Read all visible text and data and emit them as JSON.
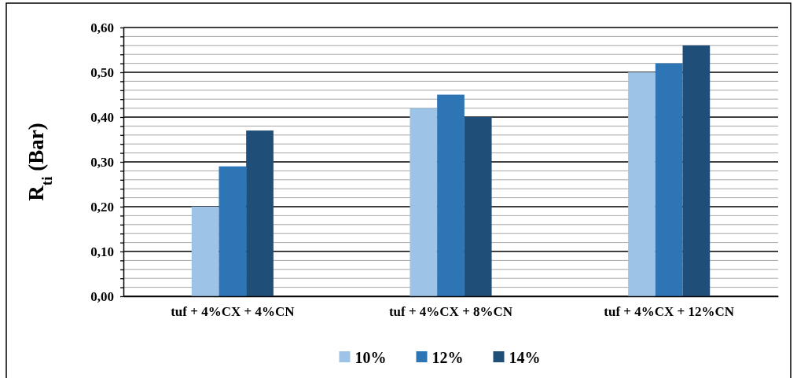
{
  "chart_data": {
    "type": "bar",
    "ylabel": "R$_{ti}$ (Bar)",
    "categories": [
      "tuf + 4%CX + 4%CN",
      "tuf + 4%CX + 8%CN",
      "tuf + 4%CX + 12%CN"
    ],
    "series": [
      {
        "name": "10%",
        "color": "#9dc3e6",
        "values": [
          0.2,
          0.42,
          0.5
        ]
      },
      {
        "name": "12%",
        "color": "#2e75b6",
        "values": [
          0.29,
          0.45,
          0.52
        ]
      },
      {
        "name": "14%",
        "color": "#1f4e79",
        "values": [
          0.37,
          0.4,
          0.56
        ]
      }
    ],
    "ylim": [
      0,
      0.6
    ],
    "yticks": [
      {
        "value": 0,
        "label": "0,00"
      },
      {
        "value": 0.02,
        "label": null
      },
      {
        "value": 0.04,
        "label": null
      },
      {
        "value": 0.06,
        "label": null
      },
      {
        "value": 0.08,
        "label": null
      },
      {
        "value": 0.1,
        "label": "0,10"
      },
      {
        "value": 0.12,
        "label": null
      },
      {
        "value": 0.14,
        "label": null
      },
      {
        "value": 0.16,
        "label": null
      },
      {
        "value": 0.18,
        "label": null
      },
      {
        "value": 0.2,
        "label": "0,20"
      },
      {
        "value": 0.22,
        "label": null
      },
      {
        "value": 0.24,
        "label": null
      },
      {
        "value": 0.26,
        "label": null
      },
      {
        "value": 0.28,
        "label": null
      },
      {
        "value": 0.3,
        "label": "0,30"
      },
      {
        "value": 0.32,
        "label": null
      },
      {
        "value": 0.34,
        "label": null
      },
      {
        "value": 0.36,
        "label": null
      },
      {
        "value": 0.38,
        "label": null
      },
      {
        "value": 0.4,
        "label": "0,40"
      },
      {
        "value": 0.42,
        "label": null
      },
      {
        "value": 0.44,
        "label": null
      },
      {
        "value": 0.46,
        "label": null
      },
      {
        "value": 0.48,
        "label": null
      },
      {
        "value": 0.5,
        "label": "0,50"
      },
      {
        "value": 0.52,
        "label": null
      },
      {
        "value": 0.54,
        "label": null
      },
      {
        "value": 0.56,
        "label": null
      },
      {
        "value": 0.58,
        "label": null
      },
      {
        "value": 0.6,
        "label": "0,60"
      }
    ],
    "grid": "y",
    "legend": "bottom"
  }
}
